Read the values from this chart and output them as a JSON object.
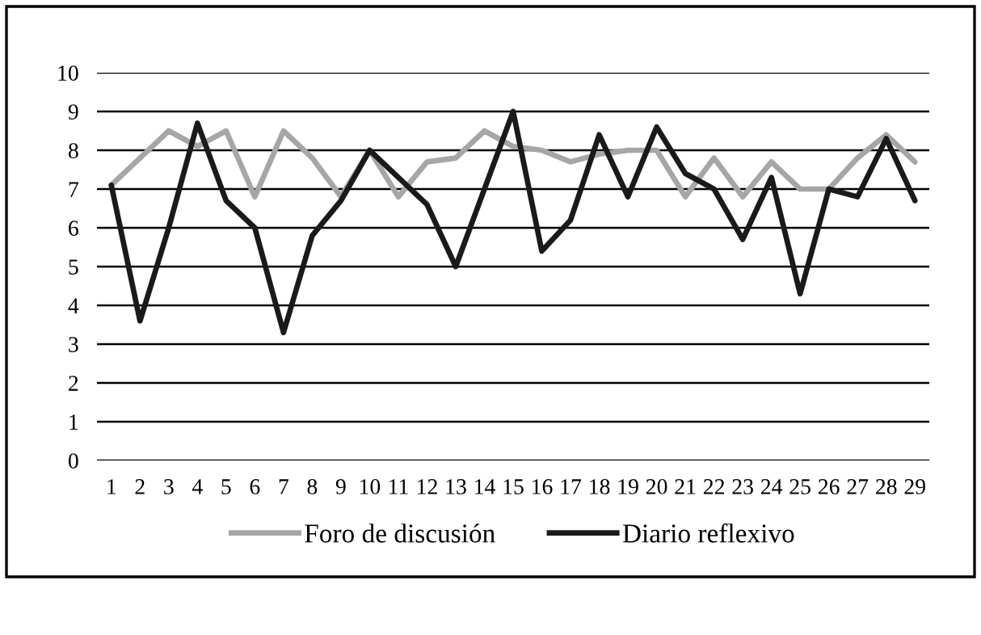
{
  "chart_data": {
    "type": "line",
    "categories": [
      "1",
      "2",
      "3",
      "4",
      "5",
      "6",
      "7",
      "8",
      "9",
      "10",
      "11",
      "12",
      "13",
      "14",
      "15",
      "16",
      "17",
      "18",
      "19",
      "20",
      "21",
      "22",
      "23",
      "24",
      "25",
      "26",
      "27",
      "28",
      "29"
    ],
    "series": [
      {
        "name": "Foro de discusión",
        "color": "#a6a6a6",
        "values": [
          7.1,
          7.8,
          8.5,
          8.1,
          8.5,
          6.8,
          8.5,
          7.8,
          6.8,
          8.0,
          6.8,
          7.7,
          7.8,
          8.5,
          8.1,
          8.0,
          7.7,
          7.9,
          8.0,
          8.0,
          6.8,
          7.8,
          6.8,
          7.7,
          7.0,
          7.0,
          7.8,
          8.4,
          7.7
        ]
      },
      {
        "name": "Diario reflexivo",
        "color": "#1a1a1a",
        "values": [
          7.1,
          3.6,
          6.0,
          8.7,
          6.7,
          6.0,
          3.3,
          5.8,
          6.7,
          8.0,
          7.3,
          6.6,
          5.0,
          7.0,
          9.0,
          5.4,
          6.2,
          8.4,
          6.8,
          8.6,
          7.4,
          7.0,
          5.7,
          7.3,
          4.3,
          7.0,
          6.8,
          8.3,
          6.7
        ]
      }
    ],
    "ylim": [
      0,
      10
    ],
    "yticks": [
      0,
      1,
      2,
      3,
      4,
      5,
      6,
      7,
      8,
      9,
      10
    ],
    "grid": "y",
    "legend": "bottom",
    "marker": "none",
    "line_style": "solid"
  }
}
